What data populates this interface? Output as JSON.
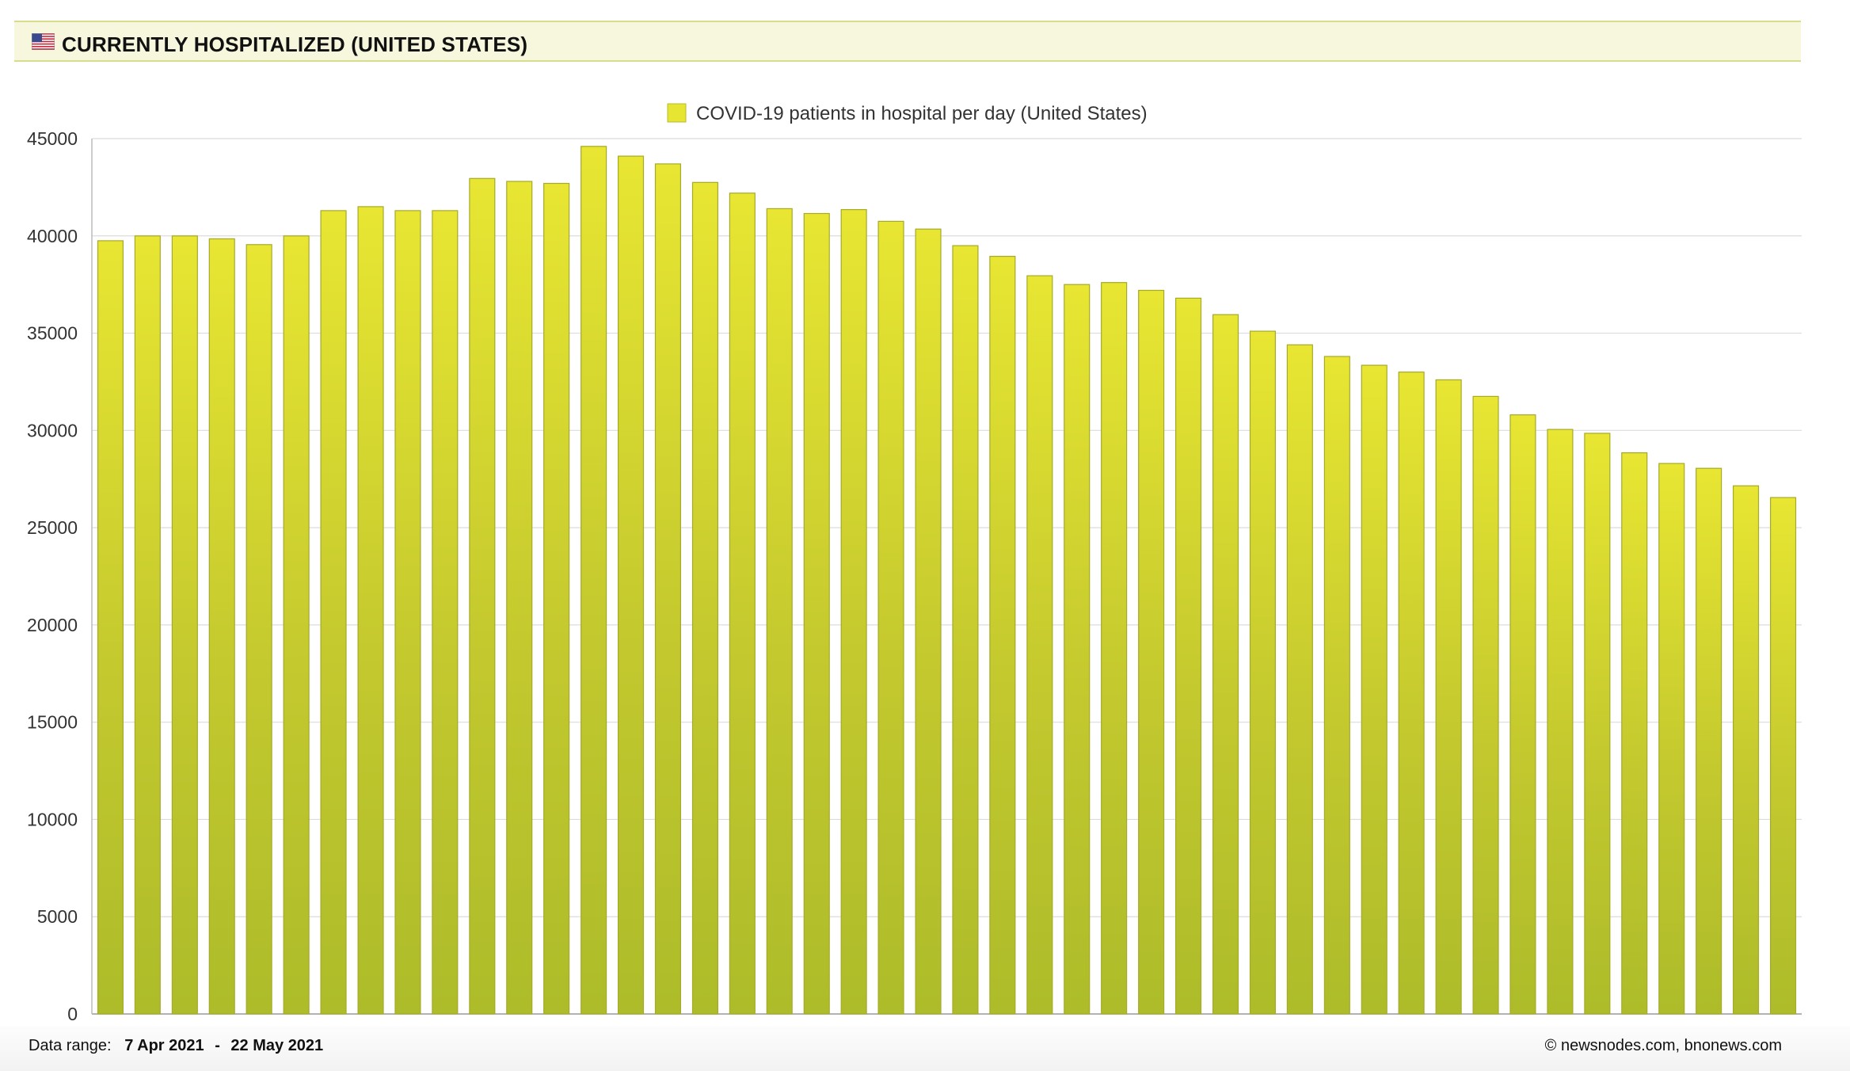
{
  "header": {
    "title": "CURRENTLY HOSPITALIZED (UNITED STATES)",
    "flag_icon": "us-flag-icon"
  },
  "colors": {
    "bar_top": "#e8e632",
    "bar_bottom": "#adbc2a",
    "bar_stroke": "#a5aa28",
    "header_bg": "#f7f7de",
    "grid": "#dddddd"
  },
  "chart_data": {
    "type": "bar",
    "title": "",
    "xlabel": "",
    "ylabel": "",
    "ylim": [
      0,
      45000
    ],
    "yticks": [
      0,
      5000,
      10000,
      15000,
      20000,
      25000,
      30000,
      35000,
      40000,
      45000
    ],
    "grid": true,
    "legend": {
      "position": "top-center",
      "entries": [
        "COVID-19 patients in hospital per day (United States)"
      ]
    },
    "series": [
      {
        "name": "COVID-19 patients in hospital per day (United States)",
        "values": [
          39750,
          40000,
          40000,
          39850,
          39550,
          40000,
          41300,
          41500,
          41300,
          41300,
          42950,
          42800,
          42700,
          44600,
          44100,
          43700,
          42750,
          42200,
          41400,
          41150,
          41350,
          40750,
          40350,
          39500,
          38950,
          37950,
          37500,
          37600,
          37200,
          36800,
          35950,
          35100,
          34400,
          33800,
          33350,
          33000,
          32600,
          31750,
          30800,
          30050,
          29850,
          28850,
          28300,
          28050,
          27150,
          26550
        ]
      }
    ]
  },
  "footer": {
    "range_label": "Data range:",
    "range_start": "7 Apr 2021",
    "range_separator": "-",
    "range_end": "22 May 2021",
    "copyright": "©  newsnodes.com, bnonews.com"
  }
}
